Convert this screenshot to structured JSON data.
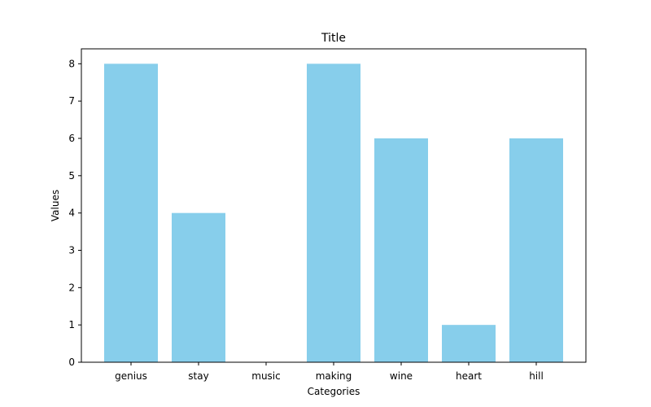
{
  "chart_data": {
    "type": "bar",
    "title": "Title",
    "xlabel": "Categories",
    "ylabel": "Values",
    "categories": [
      "genius",
      "stay",
      "music",
      "making",
      "wine",
      "heart",
      "hill"
    ],
    "values": [
      8,
      4,
      0,
      8,
      6,
      1,
      6
    ],
    "ylim": [
      0,
      8.4
    ],
    "yticks": [
      0,
      1,
      2,
      3,
      4,
      5,
      6,
      7,
      8
    ],
    "bar_color": "#87CEEB",
    "grid": false,
    "legend": false
  }
}
